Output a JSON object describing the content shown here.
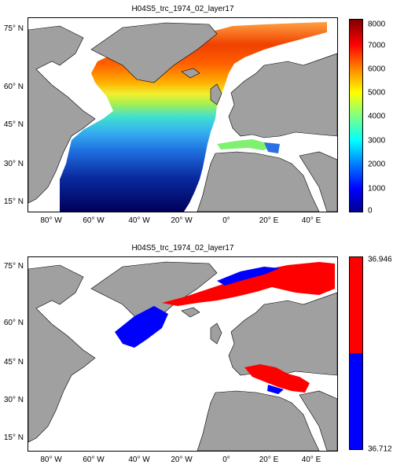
{
  "top": {
    "title": "H04S5_trc_1974_02_layer17",
    "colorbar_ticks": [
      "8000",
      "7000",
      "6000",
      "5000",
      "4000",
      "3000",
      "2000",
      "1000",
      "0"
    ],
    "colorbar_min": 0,
    "colorbar_max": 8000,
    "colormap": "jet"
  },
  "bottom": {
    "title": "H04S5_trc_1974_02_layer17",
    "colorbar_top_label": "36.946",
    "colorbar_bottom_label": "36.712",
    "colors": {
      "high": "#ff0000",
      "low": "#0000ff"
    }
  },
  "axes": {
    "lat_labels": [
      "75° N",
      "60° N",
      "45° N",
      "30° N",
      "15° N"
    ],
    "lon_labels": [
      "80° W",
      "60° W",
      "40° W",
      "20° W",
      "0°",
      "20° E",
      "40° E"
    ]
  },
  "colors": {
    "land": "#a0a0a0",
    "frame": "#000000"
  }
}
